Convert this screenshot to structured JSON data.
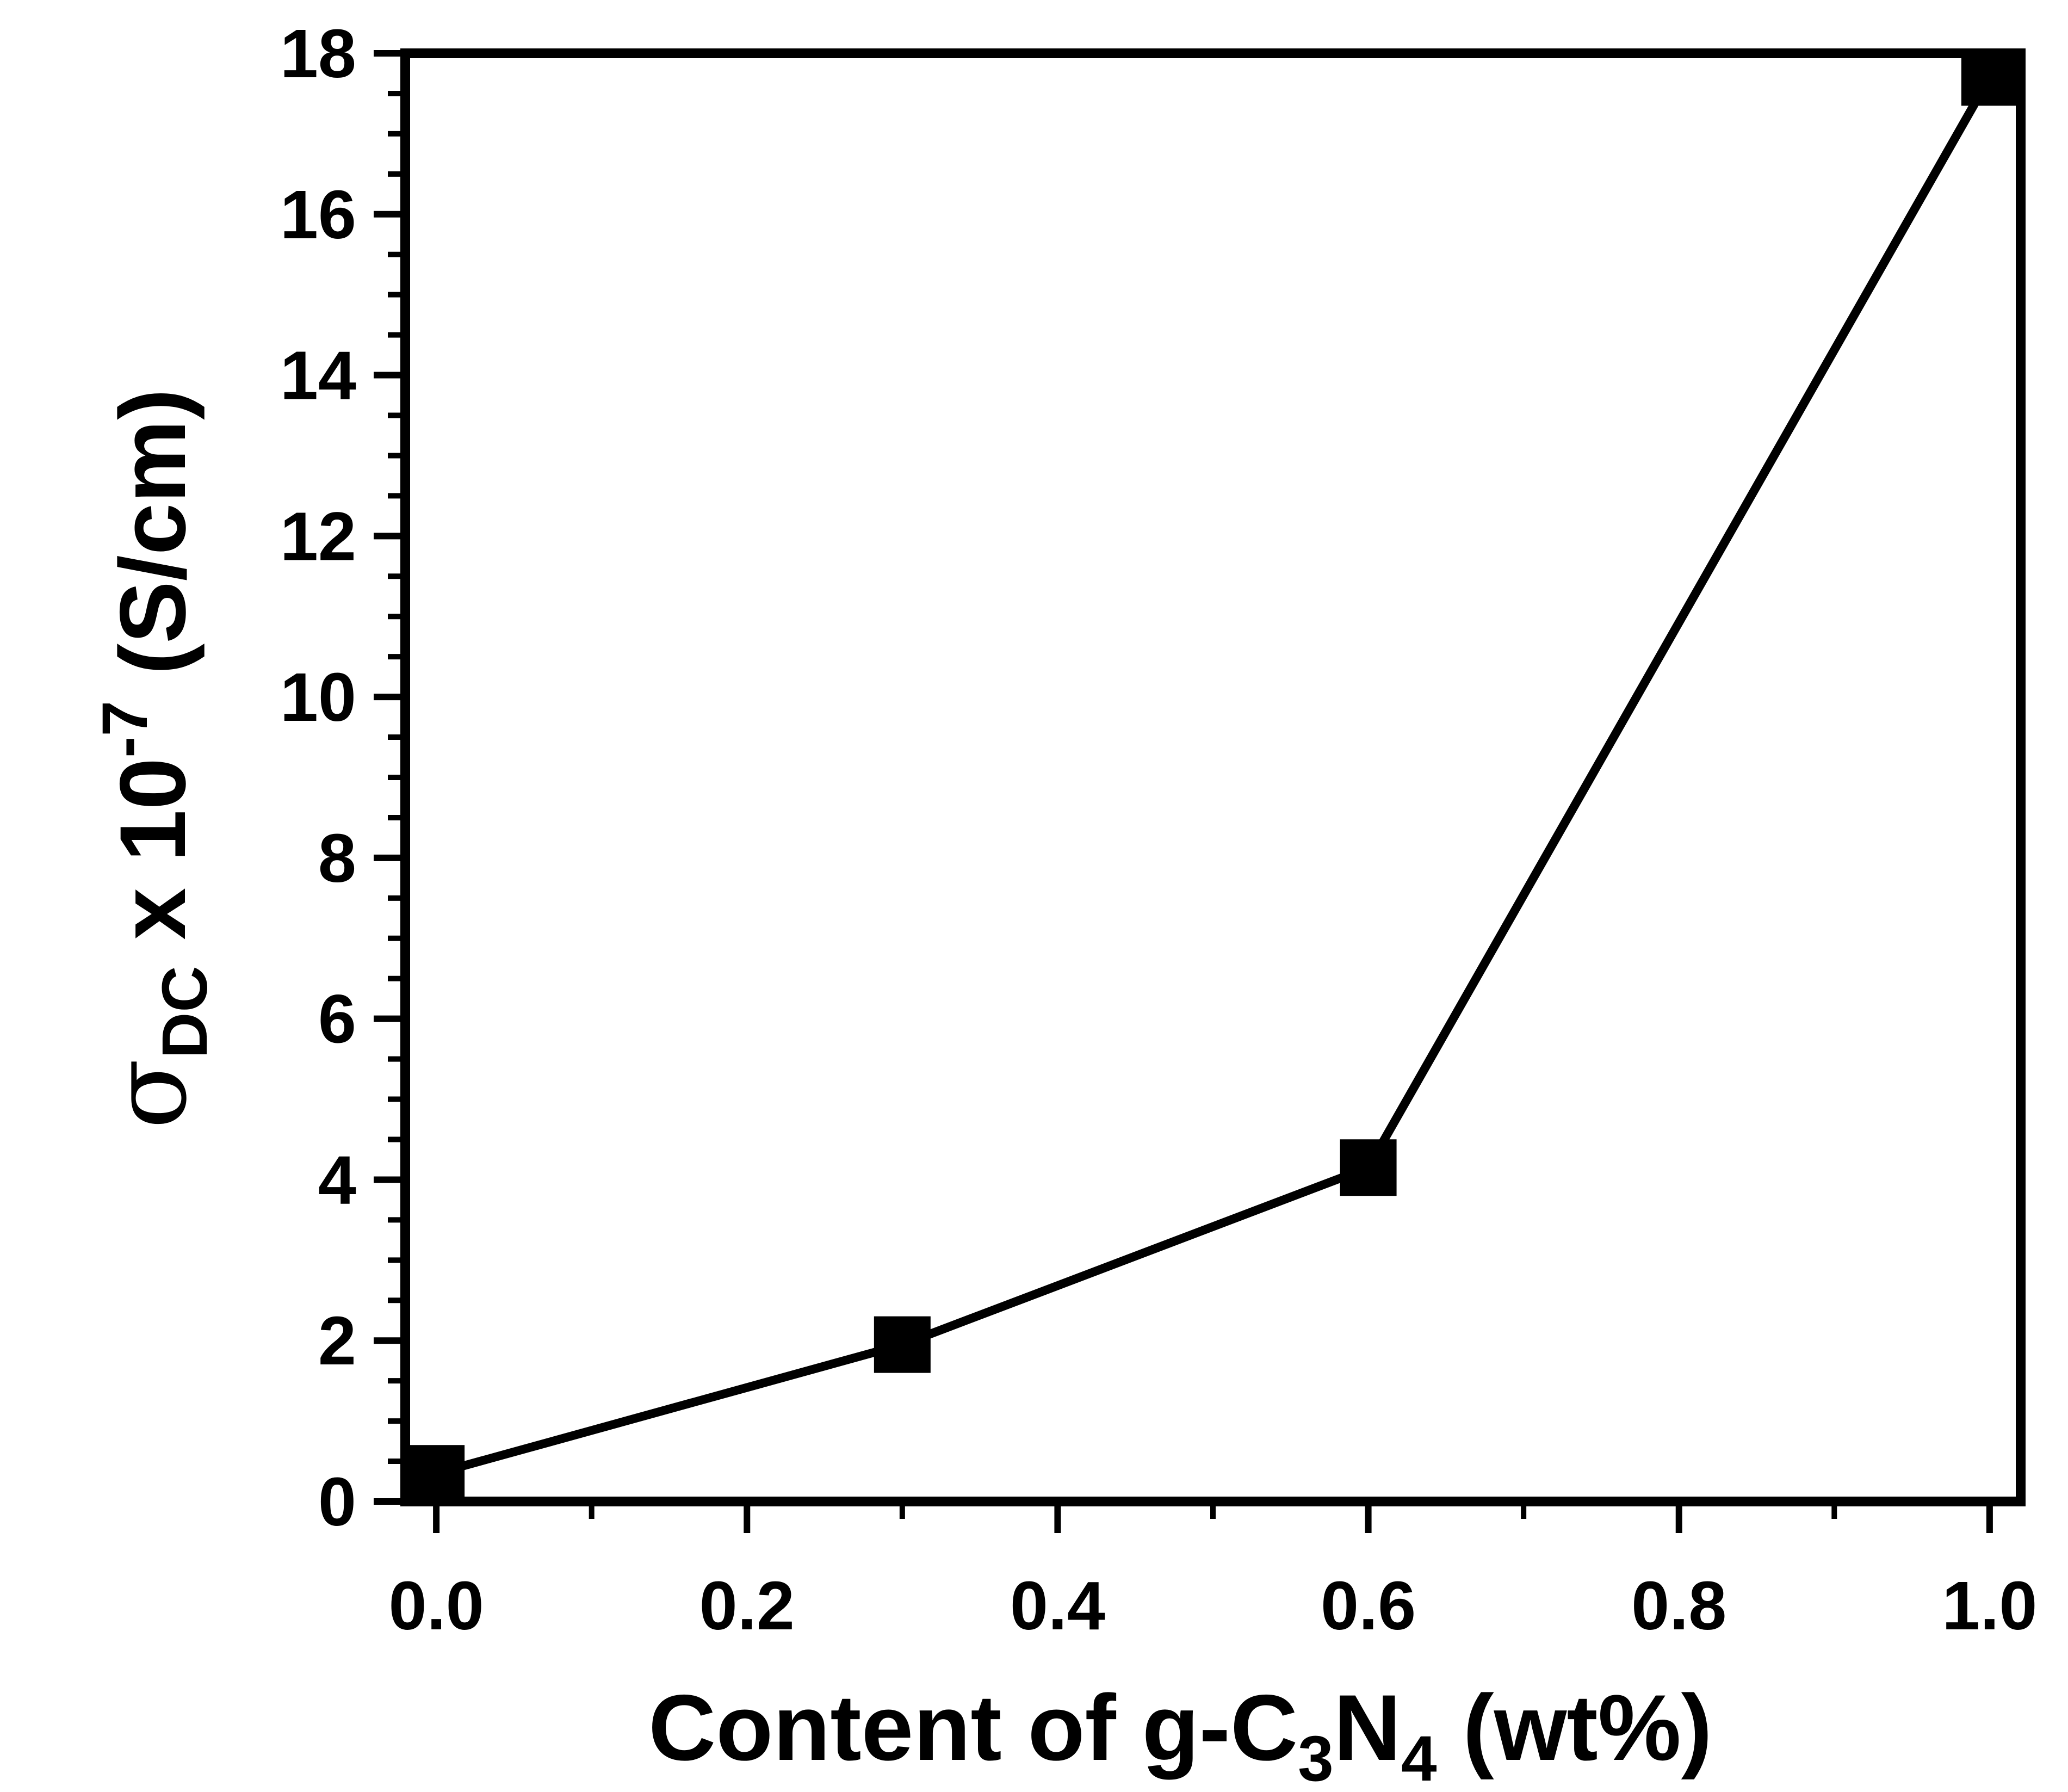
{
  "chart_data": {
    "type": "line",
    "title": "",
    "xlabel": {
      "text": "Content of g-C",
      "sub1": "3",
      "mid": "N",
      "sub2": "4",
      "end": " (wt%)"
    },
    "ylabel": {
      "symbol": "σ",
      "sub": "DC",
      "mid": " x 10",
      "sup": "-7",
      "end": " (S/cm)"
    },
    "xlim": [
      -0.02,
      1.02
    ],
    "ylim": [
      0,
      18
    ],
    "xticks": [
      0.0,
      0.2,
      0.4,
      0.6,
      0.8,
      1.0
    ],
    "xtick_labels": [
      "0.0",
      "0.2",
      "0.4",
      "0.6",
      "0.8",
      "1.0"
    ],
    "xminor": [
      0.1,
      0.3,
      0.5,
      0.7,
      0.9
    ],
    "yticks": [
      0,
      2,
      4,
      6,
      8,
      10,
      12,
      14,
      16,
      18
    ],
    "ytick_labels": [
      "0",
      "2",
      "4",
      "6",
      "8",
      "10",
      "12",
      "14",
      "16",
      "18"
    ],
    "grid": false,
    "series": [
      {
        "x": [
          0.0,
          0.3,
          0.6,
          1.0
        ],
        "y": [
          0.35,
          1.95,
          4.15,
          17.7
        ],
        "marker": "square",
        "color": "#000000"
      }
    ]
  }
}
